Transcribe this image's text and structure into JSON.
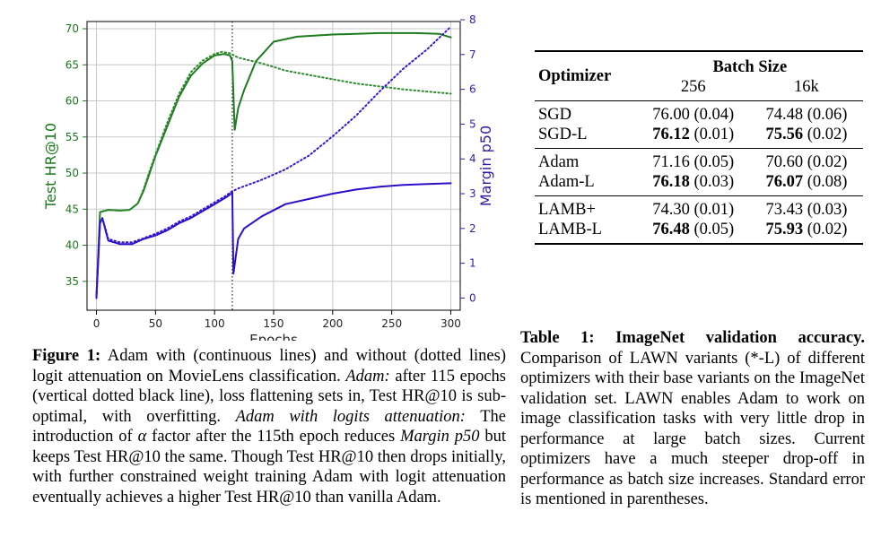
{
  "figure": {
    "caption_label": "Figure 1:",
    "caption_parts": [
      " Adam with (continuous lines) and without (dotted lines) logit attenuation on MovieLens classification. ",
      "Adam:",
      " after 115 epochs (vertical dotted black line), loss flattening sets in, Test HR@10 is sub-optimal, with overfitting. ",
      "Adam with logits attenuation:",
      " The introduction of ",
      "α",
      " factor after the 115th epoch reduces ",
      "Margin p50",
      " but keeps Test HR@10 the same. Though Test HR@10 then drops initially, with further constrained weight training Adam with logit attenuation eventually achieves a higher Test HR@10 than vanilla Adam."
    ]
  },
  "table": {
    "caption_label": "Table 1: ImageNet validation accuracy.",
    "caption_text": " Comparison of LAWN variants (*-L) of different optimizers with their base variants on the ImageNet validation set. LAWN enables Adam to work on image classification tasks with very little drop in performance at large batch sizes. Current optimizers have a much steeper drop-off in performance as batch size increases. Standard error is mentioned in parentheses.",
    "header": {
      "optimizer": "Optimizer",
      "group": "Batch Size",
      "col1": "256",
      "col2": "16k"
    },
    "groups": [
      [
        {
          "name": "SGD",
          "v1": "76.00",
          "e1": " (0.04)",
          "v2": "74.48",
          "e2": " (0.06)",
          "b1": false,
          "b2": false
        },
        {
          "name": "SGD-L",
          "v1": "76.12",
          "e1": " (0.01)",
          "v2": "75.56",
          "e2": " (0.02)",
          "b1": true,
          "b2": true
        }
      ],
      [
        {
          "name": "Adam",
          "v1": "71.16",
          "e1": " (0.05)",
          "v2": "70.60",
          "e2": " (0.02)",
          "b1": false,
          "b2": false
        },
        {
          "name": "Adam-L",
          "v1": "76.18",
          "e1": " (0.03)",
          "v2": "76.07",
          "e2": " (0.08)",
          "b1": true,
          "b2": true
        }
      ],
      [
        {
          "name": "LAMB+",
          "v1": "74.30",
          "e1": " (0.01)",
          "v2": "73.43",
          "e2": " (0.03)",
          "b1": false,
          "b2": false
        },
        {
          "name": "LAMB-L",
          "v1": "76.48",
          "e1": " (0.05)",
          "v2": "75.93",
          "e2": " (0.02)",
          "b1": true,
          "b2": true
        }
      ]
    ]
  },
  "chart_data": {
    "type": "line",
    "xlabel": "Epochs",
    "ylabel_left": "Test HR@10",
    "ylabel_right": "Margin p50",
    "xlim": [
      -8,
      308
    ],
    "ylim_left": [
      31,
      71
    ],
    "ylim_right": [
      -0.35,
      7.95
    ],
    "xticks": [
      0,
      50,
      100,
      150,
      200,
      250,
      300
    ],
    "yticks_left": [
      35,
      40,
      45,
      50,
      55,
      60,
      65,
      70
    ],
    "yticks_right": [
      0,
      1,
      2,
      3,
      4,
      5,
      6,
      7,
      8
    ],
    "grid": true,
    "vline_x": 115,
    "colors": {
      "hr": "#2a7d2a",
      "margin": "#3a16c8",
      "axis_left": "#1a7a1a",
      "axis_right": "#2d1fa8"
    },
    "series": [
      {
        "axis": "left",
        "style": "solid",
        "color": "#1e7b1e",
        "points": [
          [
            0,
            33
          ],
          [
            3,
            44.6
          ],
          [
            10,
            44.9
          ],
          [
            20,
            44.8
          ],
          [
            28,
            44.9
          ],
          [
            35,
            45.8
          ],
          [
            40,
            47.6
          ],
          [
            45,
            50
          ],
          [
            50,
            52.4
          ],
          [
            60,
            56.5
          ],
          [
            70,
            60.6
          ],
          [
            80,
            63.5
          ],
          [
            90,
            65.2
          ],
          [
            100,
            66.3
          ],
          [
            108,
            66.5
          ],
          [
            113,
            66.3
          ],
          [
            115,
            65.5
          ],
          [
            117,
            56
          ],
          [
            120,
            59
          ],
          [
            125,
            61.5
          ],
          [
            135,
            65.5
          ],
          [
            150,
            68.2
          ],
          [
            170,
            68.9
          ],
          [
            200,
            69.2
          ],
          [
            240,
            69.4
          ],
          [
            270,
            69.4
          ],
          [
            290,
            69.3
          ],
          [
            300,
            68.8
          ]
        ]
      },
      {
        "axis": "left",
        "style": "dotted",
        "color": "#2e8b2e",
        "points": [
          [
            0,
            33
          ],
          [
            3,
            44.6
          ],
          [
            10,
            44.9
          ],
          [
            20,
            44.8
          ],
          [
            28,
            44.9
          ],
          [
            35,
            45.8
          ],
          [
            40,
            47.8
          ],
          [
            45,
            50.3
          ],
          [
            50,
            52.6
          ],
          [
            60,
            57
          ],
          [
            70,
            61
          ],
          [
            80,
            64
          ],
          [
            90,
            65.6
          ],
          [
            100,
            66.5
          ],
          [
            106,
            66.8
          ],
          [
            113,
            66.6
          ],
          [
            120,
            66
          ],
          [
            140,
            65.2
          ],
          [
            160,
            64.2
          ],
          [
            180,
            63.6
          ],
          [
            200,
            63
          ],
          [
            220,
            62.4
          ],
          [
            240,
            62
          ],
          [
            260,
            61.6
          ],
          [
            280,
            61.3
          ],
          [
            300,
            61
          ]
        ]
      },
      {
        "axis": "right",
        "style": "solid",
        "color": "#2a10c8",
        "points": [
          [
            0,
            0
          ],
          [
            3,
            2.15
          ],
          [
            5,
            2.3
          ],
          [
            8,
            1.9
          ],
          [
            10,
            1.65
          ],
          [
            15,
            1.6
          ],
          [
            20,
            1.55
          ],
          [
            30,
            1.55
          ],
          [
            40,
            1.7
          ],
          [
            50,
            1.8
          ],
          [
            60,
            1.95
          ],
          [
            70,
            2.15
          ],
          [
            80,
            2.3
          ],
          [
            90,
            2.5
          ],
          [
            100,
            2.7
          ],
          [
            110,
            2.9
          ],
          [
            114,
            3.0
          ],
          [
            115,
            3.05
          ],
          [
            116,
            0.7
          ],
          [
            120,
            1.7
          ],
          [
            125,
            2.0
          ],
          [
            140,
            2.35
          ],
          [
            160,
            2.7
          ],
          [
            180,
            2.85
          ],
          [
            200,
            3.0
          ],
          [
            220,
            3.12
          ],
          [
            240,
            3.2
          ],
          [
            260,
            3.25
          ],
          [
            280,
            3.28
          ],
          [
            300,
            3.3
          ]
        ]
      },
      {
        "axis": "right",
        "style": "dotted",
        "color": "#3a16d4",
        "points": [
          [
            0,
            0
          ],
          [
            3,
            2.2
          ],
          [
            5,
            2.3
          ],
          [
            8,
            1.95
          ],
          [
            10,
            1.7
          ],
          [
            15,
            1.65
          ],
          [
            20,
            1.6
          ],
          [
            30,
            1.6
          ],
          [
            40,
            1.72
          ],
          [
            50,
            1.85
          ],
          [
            60,
            2.0
          ],
          [
            70,
            2.2
          ],
          [
            80,
            2.35
          ],
          [
            90,
            2.55
          ],
          [
            100,
            2.75
          ],
          [
            110,
            2.95
          ],
          [
            114,
            3.05
          ],
          [
            120,
            3.15
          ],
          [
            140,
            3.4
          ],
          [
            160,
            3.7
          ],
          [
            180,
            4.1
          ],
          [
            200,
            4.65
          ],
          [
            220,
            5.25
          ],
          [
            240,
            5.95
          ],
          [
            260,
            6.6
          ],
          [
            280,
            7.15
          ],
          [
            300,
            7.8
          ]
        ]
      }
    ]
  }
}
